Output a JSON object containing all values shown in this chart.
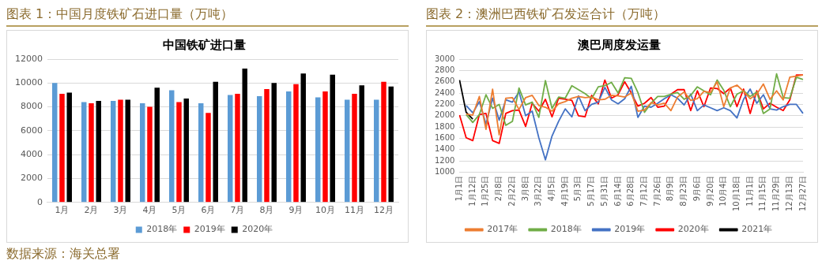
{
  "chart_data": [
    {
      "type": "bar",
      "title": "图表 1：中国月度铁矿石进口量（万吨）",
      "subtitle": "中国铁矿进口量",
      "annotations": [
        "数据来源：海关总署"
      ],
      "categories": [
        "1月",
        "2月",
        "3月",
        "4月",
        "5月",
        "6月",
        "7月",
        "8月",
        "9月",
        "10月",
        "11月",
        "12月"
      ],
      "series": [
        {
          "name": "2018年",
          "color": "#5b9bd5",
          "values": [
            10000,
            8400,
            8500,
            8300,
            9400,
            8300,
            9000,
            8900,
            9300,
            8800,
            8600,
            8600
          ]
        },
        {
          "name": "2019年",
          "color": "#ff0000",
          "values": [
            9100,
            8300,
            8600,
            8000,
            8400,
            7500,
            9100,
            9500,
            9900,
            9300,
            9100,
            10100
          ]
        },
        {
          "name": "2020年",
          "color": "#000000",
          "values": [
            9200,
            8500,
            8600,
            9600,
            8700,
            10100,
            11200,
            10000,
            10800,
            10700,
            9800,
            9700
          ]
        }
      ],
      "ylim": [
        0,
        12000
      ],
      "yticks": [
        0,
        2000,
        4000,
        6000,
        8000,
        10000,
        12000
      ],
      "grid": "y",
      "legend": "bottom"
    },
    {
      "type": "line",
      "title": "图表 2：澳洲巴西铁矿石发运合计（万吨）",
      "subtitle": "澳巴周度发运量",
      "categories": [
        "1月1日",
        null,
        "1月12日",
        null,
        "1月25日",
        null,
        "2月8日",
        null,
        "2月22日",
        null,
        "3月8日",
        null,
        "3月22日",
        null,
        "4月5日",
        null,
        "4月19日",
        null,
        "5月3日",
        null,
        "5月17日",
        null,
        "5月31日",
        null,
        "6月14日",
        null,
        "6月28日",
        null,
        "7月12日",
        null,
        "7月26日",
        null,
        "8月9日",
        null,
        "8月23日",
        null,
        "9月6日",
        null,
        "9月20日",
        null,
        "10月4日",
        null,
        "10月18日",
        null,
        "11月1日",
        null,
        "11月15日",
        null,
        "11月29日",
        null,
        "12月13日",
        null,
        "12月27日"
      ],
      "series": [
        {
          "name": "2017年",
          "color": "#ed7d31",
          "values": [
            null,
            2030,
            2010,
            2340,
            1760,
            2470,
            1660,
            2310,
            2320,
            2110,
            2320,
            2360,
            2180,
            2150,
            2080,
            2210,
            2250,
            2310,
            2340,
            2320,
            2330,
            2280,
            2290,
            2360,
            2350,
            2330,
            2400,
            2080,
            2100,
            2230,
            2190,
            2220,
            2090,
            2330,
            2420,
            2270,
            2300,
            2430,
            2410,
            2600,
            2160,
            2490,
            2540,
            2430,
            2300,
            2380,
            2560,
            2290,
            2440,
            2280,
            2680,
            2700,
            2720
          ]
        },
        {
          "name": "2018年",
          "color": "#70ad47",
          "values": [
            null,
            2020,
            1880,
            2020,
            2370,
            2130,
            2200,
            1830,
            1900,
            2490,
            2190,
            2240,
            1970,
            2620,
            2130,
            2330,
            2310,
            2530,
            2460,
            2390,
            2300,
            2510,
            2530,
            2590,
            2400,
            2670,
            2660,
            2410,
            2060,
            2220,
            2340,
            2340,
            2380,
            2410,
            2290,
            2360,
            2510,
            2440,
            2370,
            2630,
            2450,
            2160,
            2380,
            2440,
            2340,
            2420,
            2040,
            2120,
            2740,
            2320,
            2310,
            2680,
            2640
          ]
        },
        {
          "name": "2019年",
          "color": "#4472c4",
          "values": [
            null,
            2180,
            2050,
            2250,
            1850,
            2310,
            1920,
            2280,
            2240,
            2420,
            2000,
            2080,
            1610,
            1220,
            1640,
            1900,
            2120,
            1980,
            2350,
            2090,
            2200,
            2240,
            2500,
            2280,
            2210,
            2300,
            2520,
            1970,
            2170,
            2150,
            2220,
            2300,
            2370,
            2310,
            2190,
            2380,
            2090,
            2190,
            2140,
            2090,
            2140,
            2090,
            1960,
            2290,
            2470,
            2220,
            2370,
            2120,
            2100,
            2160,
            2200,
            2200,
            2040
          ]
        },
        {
          "name": "2020年",
          "color": "#ff0000",
          "values": [
            2010,
            1610,
            1560,
            2020,
            2040,
            1560,
            1510,
            2040,
            2090,
            2100,
            1810,
            2220,
            2080,
            2290,
            1980,
            2310,
            2290,
            2270,
            2000,
            1980,
            2360,
            2210,
            2630,
            2310,
            2370,
            2600,
            2400,
            2170,
            2220,
            2320,
            2150,
            2170,
            2380,
            2460,
            2460,
            2090,
            2440,
            2160,
            2490,
            2480,
            2390,
            2490,
            2160,
            2470,
            2040,
            2440,
            2120,
            2220,
            2150,
            2090,
            2280,
            2720,
            2720
          ]
        },
        {
          "name": "2021年",
          "color": "#000000",
          "values": [
            2630,
            2060,
            1940,
            null,
            null,
            null,
            null,
            null,
            null,
            null,
            null,
            null,
            null,
            null,
            null,
            null,
            null,
            null,
            null,
            null,
            null,
            null,
            null,
            null,
            null,
            null,
            null,
            null,
            null,
            null,
            null,
            null,
            null,
            null,
            null,
            null,
            null,
            null,
            null,
            null,
            null,
            null,
            null,
            null,
            null,
            null,
            null,
            null,
            null,
            null,
            null,
            null,
            null
          ]
        }
      ],
      "ylim": [
        1000,
        3000
      ],
      "yticks": [
        1000,
        1200,
        1400,
        1600,
        1800,
        2000,
        2200,
        2400,
        2600,
        2800,
        3000
      ],
      "grid": "y",
      "legend": "bottom",
      "marker": "none",
      "line_style": "solid"
    }
  ]
}
